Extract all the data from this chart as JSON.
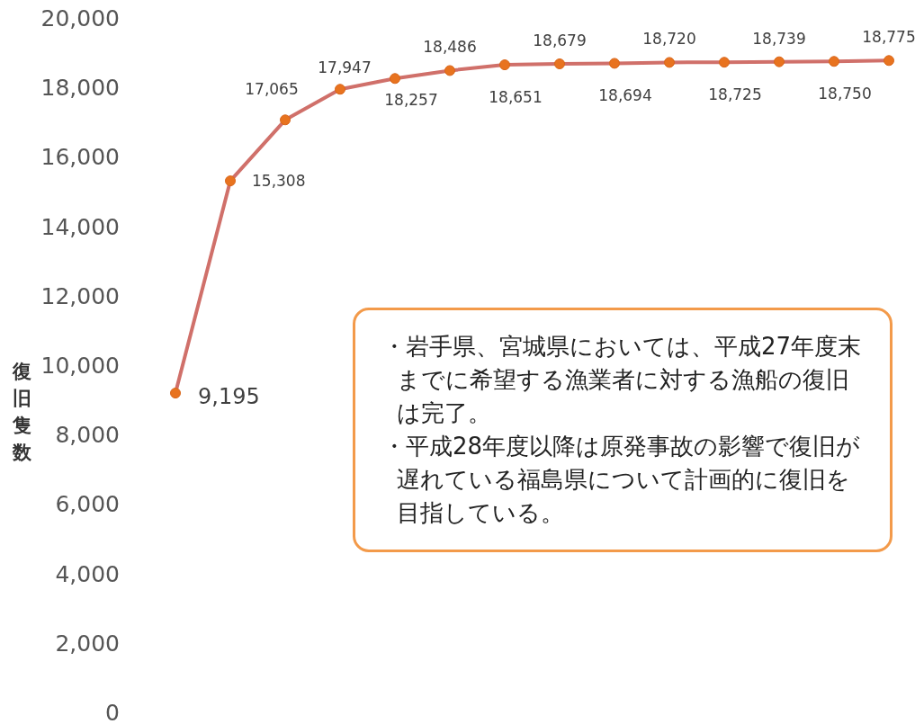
{
  "chart_data": {
    "type": "line",
    "ylabel": "復旧隻数",
    "categories": [
      null,
      null,
      null,
      null,
      null,
      null,
      null,
      null,
      null,
      null,
      null,
      null,
      null,
      null
    ],
    "series": [
      {
        "color": "#d0706a",
        "values": [
          9195,
          15308,
          17065,
          17947,
          18257,
          18486,
          18651,
          18679,
          18694,
          18720,
          18725,
          18739,
          18750,
          18775
        ],
        "value_labels": [
          "9,195",
          "15,308",
          "17,065",
          "17,947",
          "18,257",
          "18,486",
          "18,651",
          "18,679",
          "18,694",
          "18,720",
          "18,725",
          "18,739",
          "18,750",
          "18,775"
        ]
      }
    ],
    "ylim": [
      0,
      20000
    ],
    "yticks": [
      {
        "value": 0,
        "label": "0"
      },
      {
        "value": 2000,
        "label": "2,000"
      },
      {
        "value": 4000,
        "label": "4,000"
      },
      {
        "value": 6000,
        "label": "6,000"
      },
      {
        "value": 8000,
        "label": "8,000"
      },
      {
        "value": 10000,
        "label": "10,000"
      },
      {
        "value": 12000,
        "label": "12,000"
      },
      {
        "value": 14000,
        "label": "14,000"
      },
      {
        "value": 16000,
        "label": "16,000"
      },
      {
        "value": 18000,
        "label": "18,000"
      },
      {
        "value": 20000,
        "label": "20,000"
      }
    ],
    "tick_labels": "y",
    "grid": false,
    "marker": "circle",
    "line_style": "solid",
    "annotations": [
      "・岩手県、宮城県においては、平成27年度末までに希望する漁業者に対する漁船の復旧は完了。",
      "・平成28年度以降は原発事故の影響で復旧が遅れている福島県について計画的に復旧を目指している。"
    ]
  }
}
